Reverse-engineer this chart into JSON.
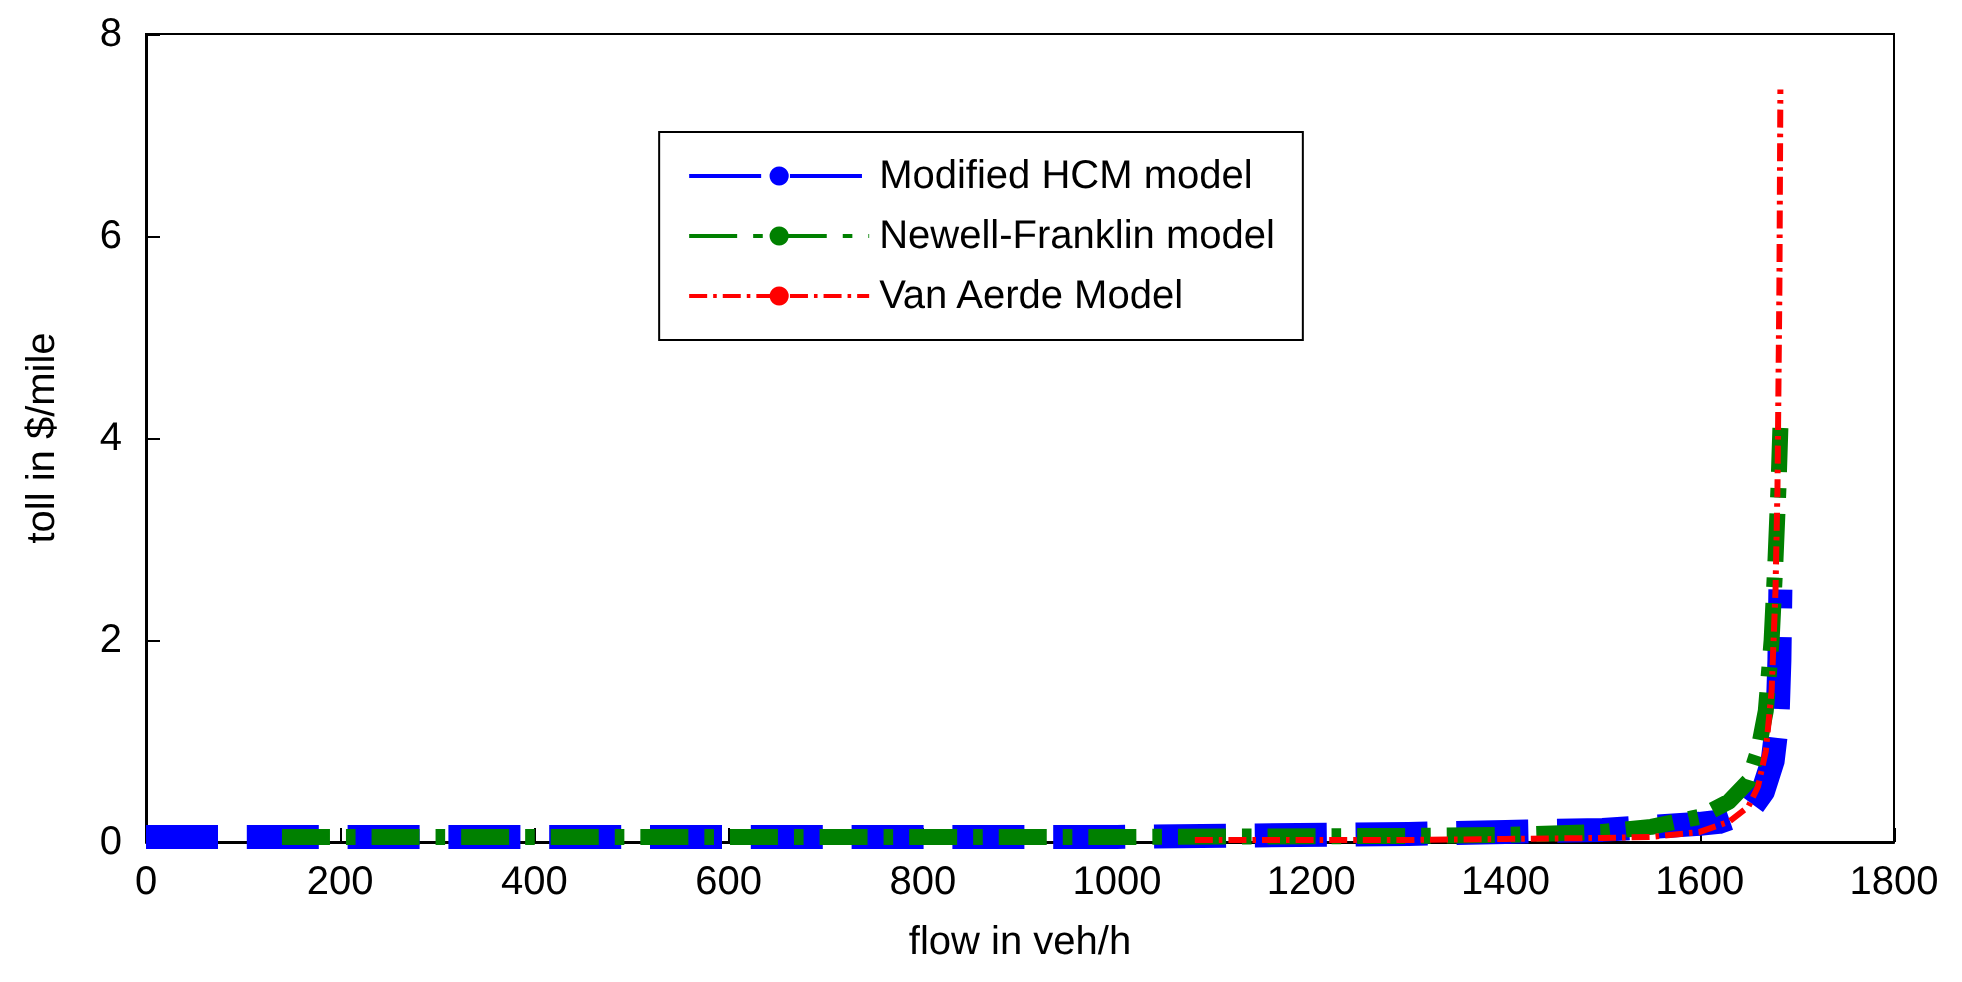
{
  "chart_data": {
    "type": "line",
    "xlabel": "flow in veh/h",
    "ylabel": "toll in $/mile",
    "xlim": [
      0,
      1800
    ],
    "xticks": [
      0,
      200,
      400,
      600,
      800,
      1000,
      1200,
      1400,
      1600,
      1800
    ],
    "ylim": [
      0,
      8
    ],
    "yticks": [
      0,
      2,
      4,
      6,
      8
    ],
    "grid": false,
    "legend": "top",
    "marker": "none",
    "series": [
      {
        "name": "Modified HCM model",
        "color": "#0000ff",
        "line_style": "dashed",
        "x": [
          0,
          500,
          1000,
          1300,
          1400,
          1500,
          1550,
          1600,
          1620,
          1650,
          1665,
          1675,
          1680,
          1682,
          1683
        ],
        "values": [
          0.05,
          0.05,
          0.05,
          0.08,
          0.1,
          0.12,
          0.15,
          0.18,
          0.2,
          0.3,
          0.5,
          0.8,
          1.2,
          1.8,
          2.5
        ]
      },
      {
        "name": "Newell-Franklin model",
        "color": "#008000",
        "line_style": "dashdot",
        "x": [
          140,
          500,
          1000,
          1300,
          1400,
          1500,
          1550,
          1600,
          1630,
          1650,
          1660,
          1668,
          1674,
          1678,
          1681,
          1683
        ],
        "values": [
          0.05,
          0.05,
          0.05,
          0.06,
          0.07,
          0.1,
          0.15,
          0.25,
          0.4,
          0.6,
          0.9,
          1.3,
          2.0,
          2.8,
          3.5,
          4.1
        ]
      },
      {
        "name": "Van Aerde Model",
        "color": "#ff0000",
        "line_style": "dashdot",
        "x": [
          1080,
          1300,
          1400,
          1500,
          1550,
          1600,
          1630,
          1650,
          1660,
          1668,
          1674,
          1678,
          1680,
          1682,
          1683
        ],
        "values": [
          0.02,
          0.02,
          0.03,
          0.04,
          0.05,
          0.1,
          0.2,
          0.35,
          0.55,
          0.9,
          1.5,
          2.5,
          3.5,
          5.5,
          7.45
        ]
      }
    ]
  }
}
